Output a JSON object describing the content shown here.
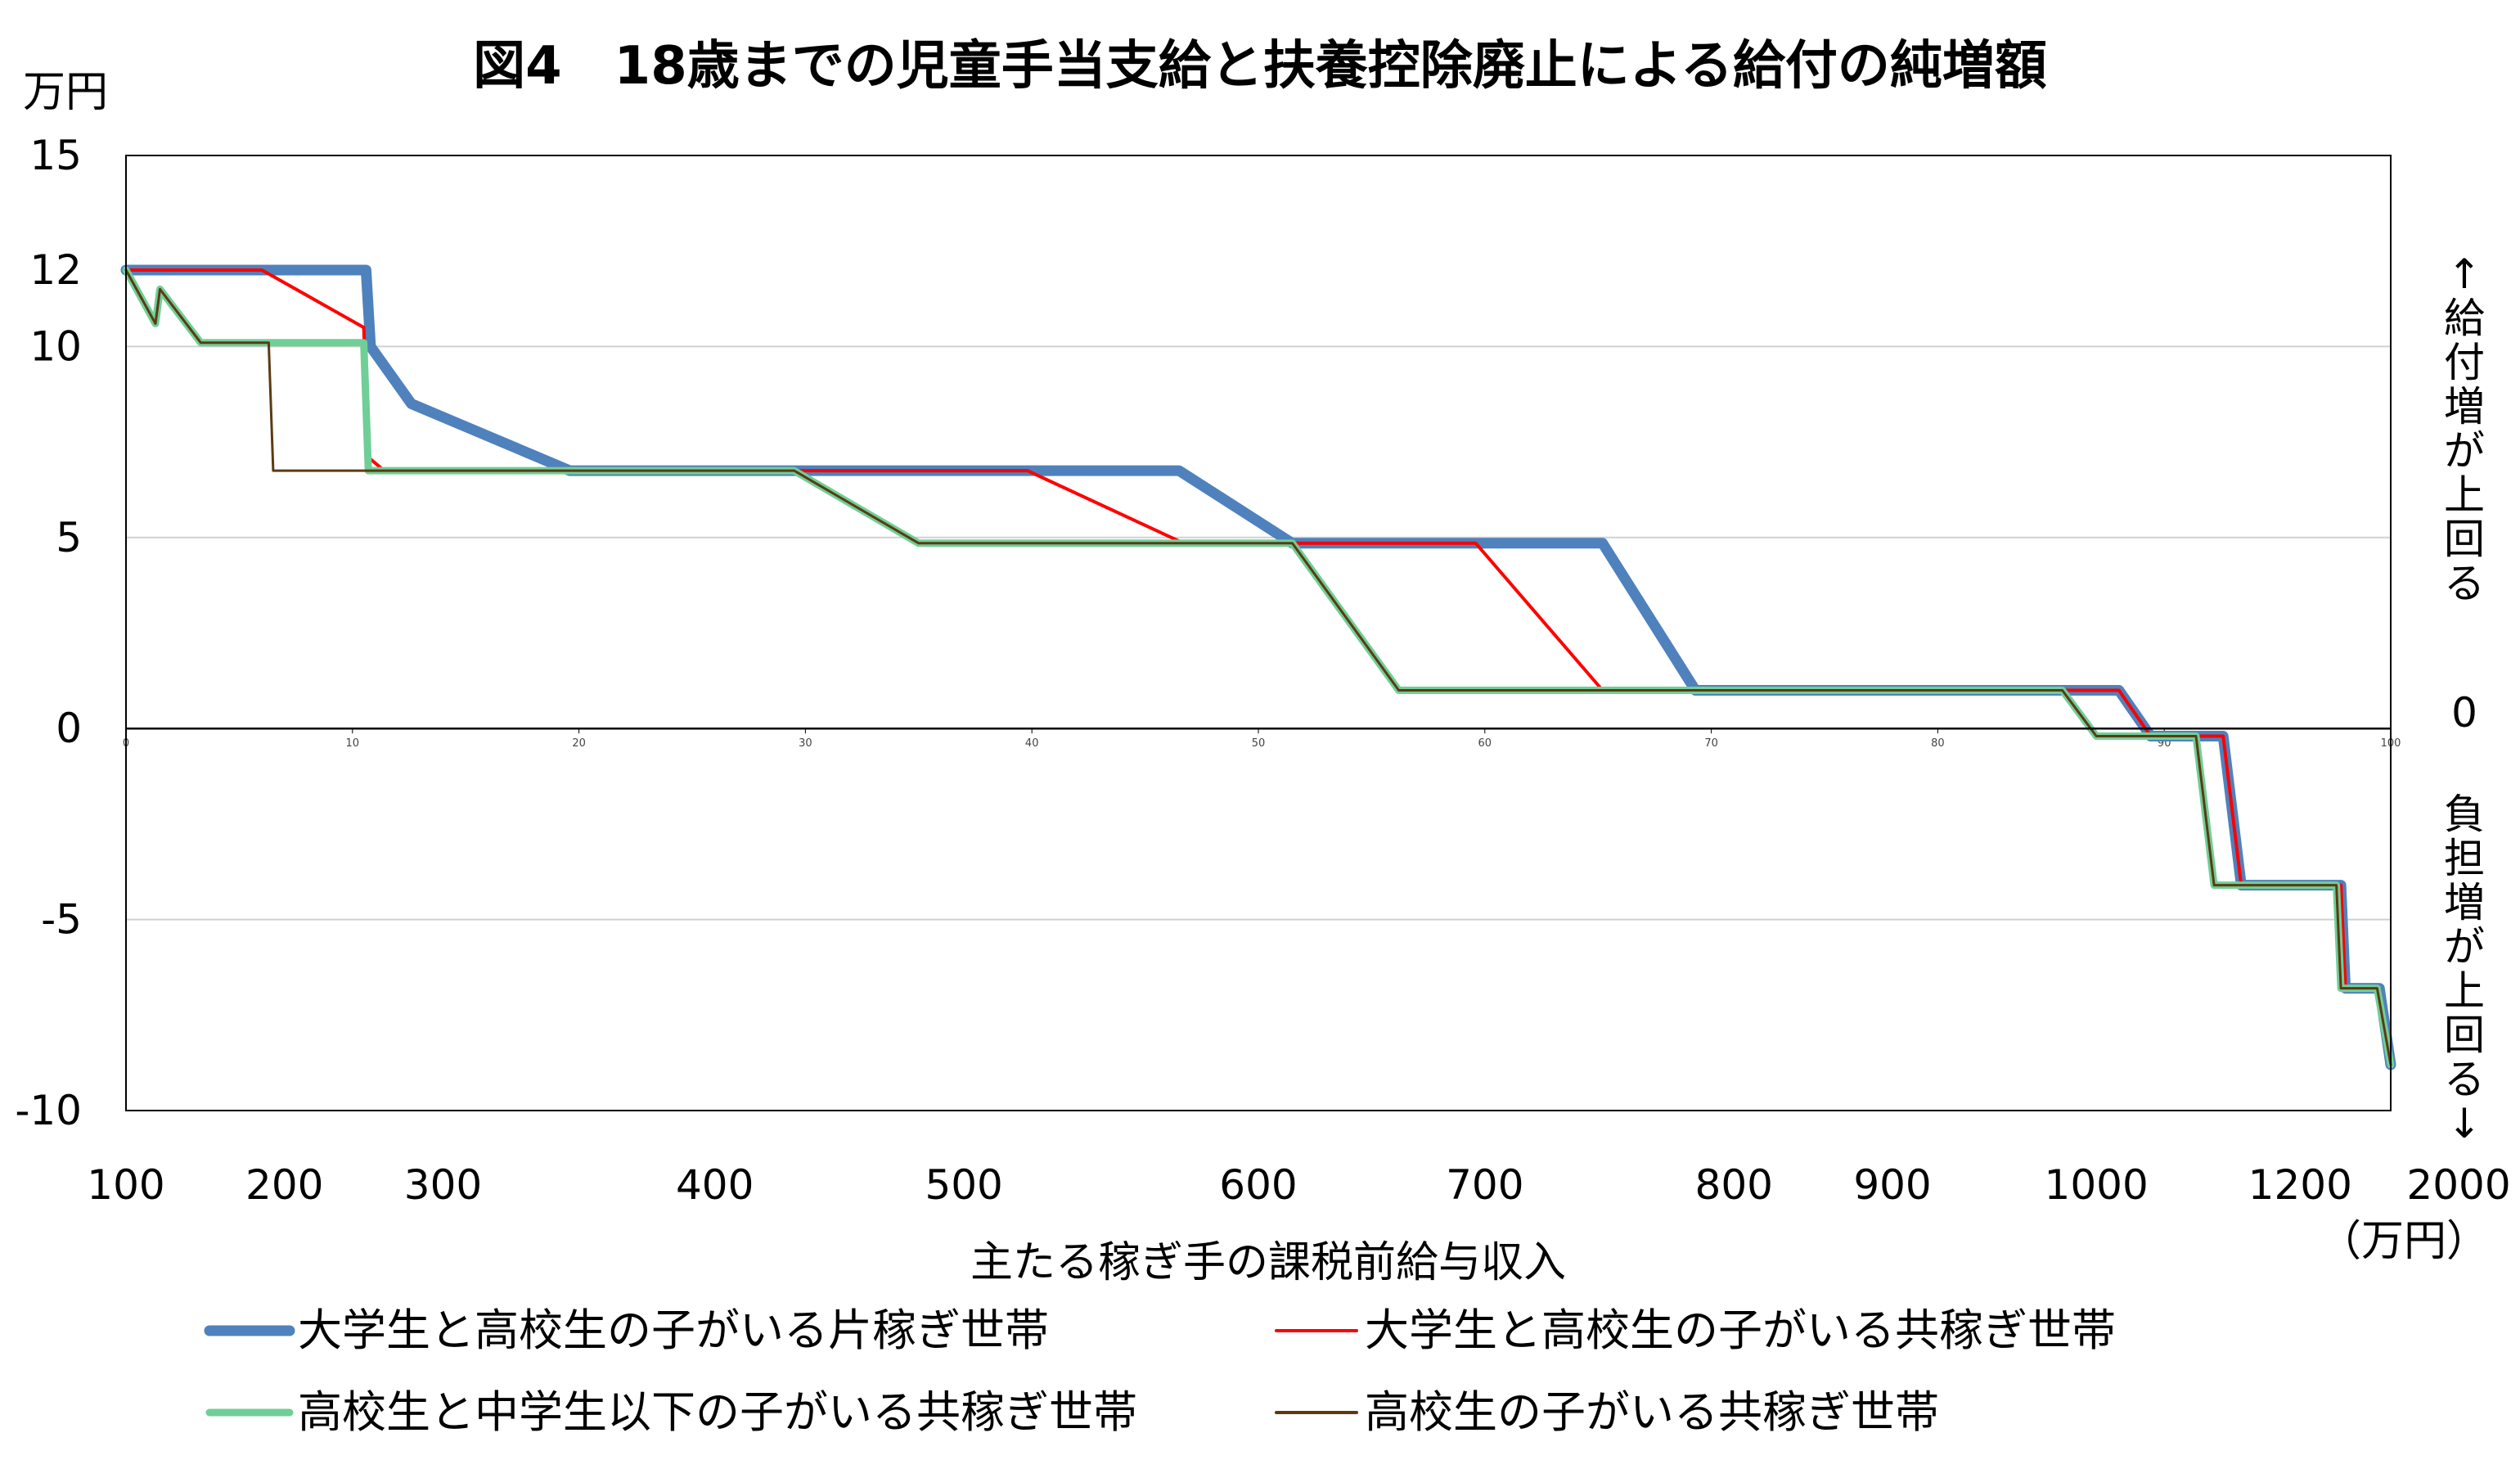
{
  "chart_data": {
    "type": "line",
    "title": "図4　18歳までの児童手当支給と扶養控除廃止による給付の純増額",
    "ylabel": "万円",
    "xlabel": "主たる稼ぎ手の課税前給与収入",
    "x_unit": "（万円）",
    "ylim": [
      -10,
      15
    ],
    "yticks": [
      15,
      12,
      10,
      5,
      0,
      -5,
      -10
    ],
    "y_tick_labels": [
      "15",
      "12",
      "10",
      "5",
      "0",
      "-5",
      "-10"
    ],
    "x_index_ticks": [
      "0",
      "10",
      "20",
      "30",
      "40",
      "50",
      "60",
      "70",
      "80",
      "90",
      "100"
    ],
    "x_income_labels": [
      {
        "label": "100",
        "idx": 0
      },
      {
        "label": "200",
        "idx": 7
      },
      {
        "label": "300",
        "idx": 14
      },
      {
        "label": "400",
        "idx": 26
      },
      {
        "label": "500",
        "idx": 37
      },
      {
        "label": "600",
        "idx": 50
      },
      {
        "label": "700",
        "idx": 60
      },
      {
        "label": "800",
        "idx": 71
      },
      {
        "label": "900",
        "idx": 78
      },
      {
        "label": "1000",
        "idx": 87
      },
      {
        "label": "1200",
        "idx": 96
      },
      {
        "label": "2000",
        "idx": 103
      }
    ],
    "side_up_label": "↑給付増が上回る",
    "side_zero_label": "0",
    "side_down_label": "負担増が上回る↓",
    "grid": true,
    "legend_position": "bottom",
    "series": [
      {
        "name": "大学生と高校生の子がいる片稼ぎ世帯",
        "color": "#4F81BD",
        "width": 13,
        "points": [
          [
            0,
            12
          ],
          [
            10.6,
            12
          ],
          [
            10.8,
            10
          ],
          [
            12.6,
            8.5
          ],
          [
            19.6,
            6.75
          ],
          [
            46.5,
            6.75
          ],
          [
            51.5,
            4.85
          ],
          [
            65.2,
            4.85
          ],
          [
            69.3,
            1
          ],
          [
            88,
            1
          ],
          [
            89.4,
            -0.2
          ],
          [
            92.6,
            -0.2
          ],
          [
            93.4,
            -4.1
          ],
          [
            97.8,
            -4.1
          ],
          [
            98,
            -6.8
          ],
          [
            99.5,
            -6.8
          ],
          [
            100,
            -8.8
          ]
        ]
      },
      {
        "name": "大学生と高校生の子がいる共稼ぎ世帯",
        "color": "#FF0000",
        "width": 4,
        "points": [
          [
            0,
            12
          ],
          [
            6,
            12
          ],
          [
            10.5,
            10.5
          ],
          [
            10.7,
            7.1
          ],
          [
            11.4,
            6.75
          ],
          [
            39.8,
            6.75
          ],
          [
            46.7,
            4.85
          ],
          [
            59.6,
            4.85
          ],
          [
            65.2,
            1
          ],
          [
            88,
            1
          ],
          [
            89.4,
            -0.2
          ],
          [
            92.6,
            -0.2
          ],
          [
            93.4,
            -4.1
          ],
          [
            97.8,
            -4.1
          ],
          [
            98,
            -6.8
          ],
          [
            99.5,
            -6.8
          ],
          [
            100,
            -8.8
          ]
        ]
      },
      {
        "name": "高校生と中学生以下の子がいる共稼ぎ世帯",
        "color": "#6FCF97",
        "width": 9,
        "points": [
          [
            0,
            12
          ],
          [
            1.3,
            10.6
          ],
          [
            1.5,
            11.5
          ],
          [
            3.3,
            10.1
          ],
          [
            10.5,
            10.1
          ],
          [
            10.7,
            6.75
          ],
          [
            29.5,
            6.75
          ],
          [
            35,
            4.85
          ],
          [
            51.5,
            4.85
          ],
          [
            56.2,
            1
          ],
          [
            85.5,
            1
          ],
          [
            87,
            -0.2
          ],
          [
            91.4,
            -0.2
          ],
          [
            92.2,
            -4.1
          ],
          [
            97.6,
            -4.1
          ],
          [
            97.8,
            -6.8
          ],
          [
            99.4,
            -6.8
          ],
          [
            100,
            -8.8
          ]
        ]
      },
      {
        "name": "高校生の子がいる共稼ぎ世帯",
        "color": "#5C3A12",
        "width": 3,
        "points": [
          [
            0,
            12
          ],
          [
            1.3,
            10.6
          ],
          [
            1.5,
            11.5
          ],
          [
            3.3,
            10.1
          ],
          [
            6.3,
            10.1
          ],
          [
            6.5,
            6.75
          ],
          [
            29.5,
            6.75
          ],
          [
            35,
            4.85
          ],
          [
            51.5,
            4.85
          ],
          [
            56.2,
            1
          ],
          [
            85.5,
            1
          ],
          [
            87,
            -0.2
          ],
          [
            91.4,
            -0.2
          ],
          [
            92.2,
            -4.1
          ],
          [
            97.6,
            -4.1
          ],
          [
            97.8,
            -6.8
          ],
          [
            99.4,
            -6.8
          ],
          [
            100,
            -8.8
          ]
        ]
      }
    ]
  }
}
